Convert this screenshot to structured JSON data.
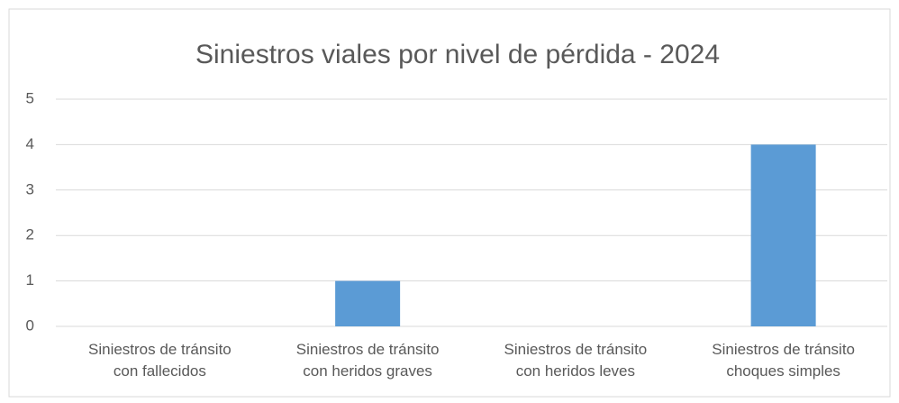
{
  "chart_data": {
    "type": "bar",
    "title": "Siniestros viales por nivel de pérdida - 2024",
    "categories": [
      "Siniestros de tránsito con fallecidos",
      "Siniestros de tránsito con heridos graves",
      "Siniestros de tránsito con heridos leves",
      "Siniestros de tránsito choques simples"
    ],
    "values": [
      0,
      1,
      0,
      4
    ],
    "color": "#5b9bd5",
    "ylim": [
      0,
      5
    ],
    "yticks": [
      0,
      1,
      2,
      3,
      4,
      5
    ],
    "grid": true
  }
}
